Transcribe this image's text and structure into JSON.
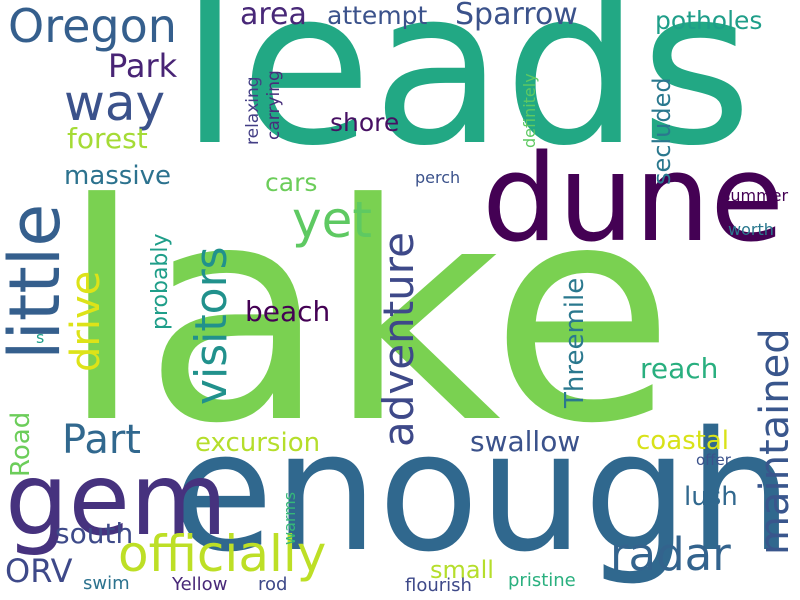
{
  "word_cloud": {
    "words": [
      {
        "text": "lake",
        "color": "#7ad151"
      },
      {
        "text": "leads",
        "color": "#22a884"
      },
      {
        "text": "enough",
        "color": "#30688e"
      },
      {
        "text": "dune",
        "color": "#440154"
      },
      {
        "text": "little",
        "color": "#355f8d"
      },
      {
        "text": "gem",
        "color": "#46327e"
      },
      {
        "text": "Oregon",
        "color": "#355f8d"
      },
      {
        "text": "way",
        "color": "#3b528b"
      },
      {
        "text": "officially",
        "color": "#bddf26"
      },
      {
        "text": "visitors",
        "color": "#21918c"
      },
      {
        "text": "adventure",
        "color": "#3e4989"
      },
      {
        "text": "maintained",
        "color": "#39568c"
      },
      {
        "text": "radar",
        "color": "#33638d"
      },
      {
        "text": "drive",
        "color": "#dde318"
      },
      {
        "text": "yet",
        "color": "#5ec962"
      },
      {
        "text": "Part",
        "color": "#31688e"
      },
      {
        "text": "Sparrow",
        "color": "#3b528b"
      },
      {
        "text": "area",
        "color": "#482878"
      },
      {
        "text": "attempt",
        "color": "#3b528b"
      },
      {
        "text": "Park",
        "color": "#482475"
      },
      {
        "text": "forest",
        "color": "#a5db36"
      },
      {
        "text": "massive",
        "color": "#2c728e"
      },
      {
        "text": "potholes",
        "color": "#1f9e89"
      },
      {
        "text": "secluded",
        "color": "#2a788e"
      },
      {
        "text": "shore",
        "color": "#471063"
      },
      {
        "text": "cars",
        "color": "#6ccd5a"
      },
      {
        "text": "beach",
        "color": "#440154"
      },
      {
        "text": "Threemile",
        "color": "#2a788e"
      },
      {
        "text": "reach",
        "color": "#29af7f"
      },
      {
        "text": "excursion",
        "color": "#b5de2b"
      },
      {
        "text": "swallow",
        "color": "#3b528b"
      },
      {
        "text": "coastal",
        "color": "#d8e219"
      },
      {
        "text": "lush",
        "color": "#31688e"
      },
      {
        "text": "south",
        "color": "#3e4a89"
      },
      {
        "text": "ORV",
        "color": "#3e4989"
      },
      {
        "text": "small",
        "color": "#b5de2b"
      },
      {
        "text": "swim",
        "color": "#2c728e"
      },
      {
        "text": "Yellow",
        "color": "#482878"
      },
      {
        "text": "rod",
        "color": "#3e4989"
      },
      {
        "text": "flourish",
        "color": "#3e4989"
      },
      {
        "text": "pristine",
        "color": "#2ab07f"
      },
      {
        "text": "Road",
        "color": "#6ccd5a"
      },
      {
        "text": "probably",
        "color": "#1f9e89"
      },
      {
        "text": "relaxing",
        "color": "#433e85"
      },
      {
        "text": "carrying",
        "color": "#472d7b"
      },
      {
        "text": "definitely",
        "color": "#5ec962"
      },
      {
        "text": "perch",
        "color": "#3b528b"
      },
      {
        "text": "summer",
        "color": "#440154"
      },
      {
        "text": "worth",
        "color": "#2a788e"
      },
      {
        "text": "warms",
        "color": "#35b779"
      },
      {
        "text": "offer",
        "color": "#3b528b"
      },
      {
        "text": "s",
        "color": "#1f9e89"
      }
    ]
  }
}
